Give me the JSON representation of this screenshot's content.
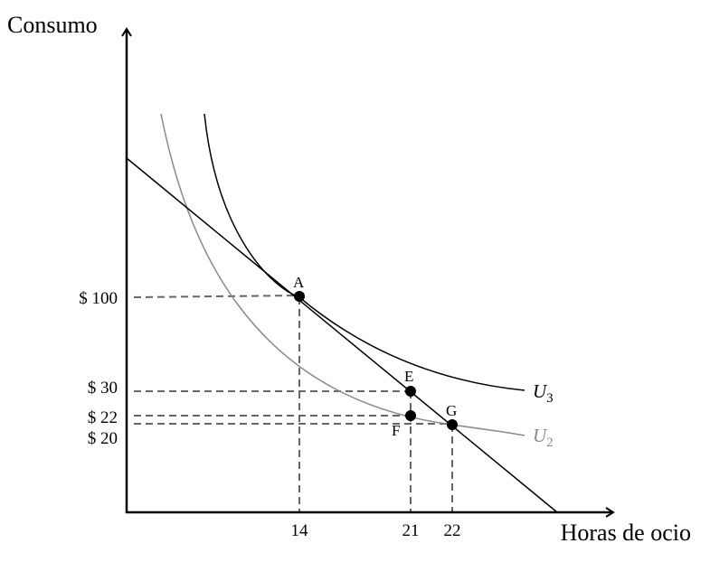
{
  "axes": {
    "y_label": "Consumo",
    "x_label": "Horas de ocio",
    "x_ticks": [
      "14",
      "21",
      "22"
    ],
    "y_ticks": [
      "$ 100",
      "$ 30",
      "$ 22",
      "$ 20"
    ]
  },
  "curves": {
    "u3": {
      "base": "U",
      "sub": "3",
      "color": "#000000"
    },
    "u2": {
      "base": "U",
      "sub": "2",
      "color": "#8a8a8a"
    },
    "budget_line_color": "#000000"
  },
  "points": [
    {
      "id": "A",
      "label": "A",
      "x": 14,
      "y": 100
    },
    {
      "id": "E",
      "label": "E",
      "x": 21,
      "y": 30
    },
    {
      "id": "F",
      "label": "F",
      "x": 21,
      "y": 22
    },
    {
      "id": "G",
      "label": "G",
      "x": 22,
      "y": 20
    }
  ],
  "guide_color": "#666666"
}
